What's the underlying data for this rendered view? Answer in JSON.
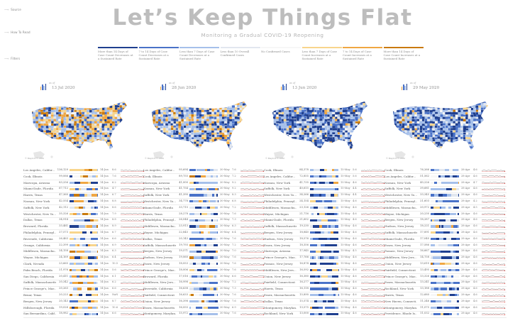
{
  "header": {
    "title": "Let’s Keep Things Flat",
    "subtitle": "Monitoring a Gradual COVID-19 Reopening"
  },
  "sidebar": [
    {
      "label": "Source",
      "icon": "arrow-icon"
    },
    {
      "label": "How To Read",
      "icon": "arrow-icon"
    },
    {
      "label": "Filters",
      "icon": "arrow-icon"
    }
  ],
  "legend": [
    {
      "label": "More than 14 Days of Case Count Decreases at a Sustained Rate",
      "color": "#1f3f8f"
    },
    {
      "label": "7 to 14 Days of Case Count Decreases at a Sustained Rate",
      "color": "#4a72c8"
    },
    {
      "label": "Less than 7 Days of Case Count Decreases at a Sustained Rate",
      "color": "#a6c0ea"
    },
    {
      "label": "Less than 10 Overall Confirmed Cases",
      "color": "#e2e7ef"
    },
    {
      "label": "No Confirmed Cases",
      "color": "#f7f7f7"
    },
    {
      "label": "Less than 7 Days of Case Count Increases at a Sustained Rate",
      "color": "#f8d58c"
    },
    {
      "label": "7 to 14 Days of Case Count Increases at a Sustained Rate",
      "color": "#f0a742"
    },
    {
      "label": "More than 14 Days of Case Count Increases at a Sustained Rate",
      "color": "#c97a0e"
    }
  ],
  "map_credit": "© Mapbox © OSM",
  "as_of_label": "as of",
  "chart_data": [
    {
      "type": "table",
      "title": "13 Jul 2020",
      "rows": [
        {
          "name": "Los Angeles, Califor...",
          "cases": "136,129",
          "date": "14-Jun",
          "rate": "8.6"
        },
        {
          "name": "Cook, Illinois",
          "cases": "99,066",
          "date": "14-Jun",
          "rate": "7.6"
        },
        {
          "name": "Maricopa, Arizona",
          "cases": "83,256",
          "date": "14-Jun",
          "rate": "6.2"
        },
        {
          "name": "Miami-Dade, Florida",
          "cases": "67,712",
          "date": "14-Jun",
          "rate": "4.7"
        },
        {
          "name": "Harris, Texas",
          "cases": "47,360",
          "date": "14-Jun",
          "rate": "6.7"
        },
        {
          "name": "Nassau, New York",
          "cases": "42,554",
          "date": "14-Jun",
          "rate": "8.8"
        },
        {
          "name": "Suffolk, New York",
          "cases": "42,112",
          "date": "14-Jun",
          "rate": "8.6"
        },
        {
          "name": "Westchester, New Yo...",
          "cases": "35,326",
          "date": "14-Jun",
          "rate": "7.9"
        },
        {
          "name": "Dallas, Texas",
          "cases": "34,914",
          "date": "14-Jun",
          "rate": "8.8"
        },
        {
          "name": "Broward, Florida",
          "cases": "33,461",
          "date": "14-Jun",
          "rate": "8.9"
        },
        {
          "name": "Philadelphia, Pennsyl...",
          "cases": "27,573",
          "date": "14-Jun",
          "rate": "6.7"
        },
        {
          "name": "Riverside, California",
          "cases": "26,463",
          "date": "14-Jun",
          "rate": "6.6"
        },
        {
          "name": "Orange, California",
          "cases": "22,399",
          "date": "14-Jun",
          "rate": "6.9"
        },
        {
          "name": "Middlesex, Massachu...",
          "cases": "24,158",
          "date": "14-Jun",
          "rate": "6.3"
        },
        {
          "name": "Wayne, Michigan",
          "cases": "24,169",
          "date": "14-Jun",
          "rate": "6.4"
        },
        {
          "name": "Clark, Nevada",
          "cases": "23,665",
          "date": "14-Jun",
          "rate": "10.5"
        },
        {
          "name": "Palm Beach, Florida",
          "cases": "21,976",
          "date": "14-Jun",
          "rate": "5.6"
        },
        {
          "name": "San Diego, California",
          "cases": "20,411",
          "date": "14-Jun",
          "rate": "6.1"
        },
        {
          "name": "Suffolk, Massachusetts",
          "cases": "20,342",
          "date": "14-Jun",
          "rate": "6.2"
        },
        {
          "name": "Prince George's, Mar...",
          "cases": "20,263",
          "date": "14-Jun",
          "rate": "6.6"
        },
        {
          "name": "Bexar, Texas",
          "cases": "20,223",
          "date": "14-Jun",
          "rate": "NaN"
        },
        {
          "name": "Bergen, New Jersey",
          "cases": "20,143",
          "date": "14-Jun",
          "rate": "8.7"
        },
        {
          "name": "Hillsborough, Florida",
          "cases": "19,028",
          "date": "14-Jun",
          "rate": "10.6"
        },
        {
          "name": "San Bernardino, Calif...",
          "cases": "18,982",
          "date": "14-Jun",
          "rate": "6.6"
        }
      ]
    },
    {
      "type": "table",
      "title": "28 Jun 2020",
      "rows": [
        {
          "name": "Los Angeles, Califor...",
          "cases": "95,694",
          "date": "30-May",
          "rate": "7.6"
        },
        {
          "name": "Cook, Illinois",
          "cases": "89,755",
          "date": "30-May",
          "rate": "7.2"
        },
        {
          "name": "Maricopa, Arizona",
          "cases": "41,000",
          "date": "30-May",
          "rate": "9.2"
        },
        {
          "name": "Nassau, New York",
          "cases": "41,754",
          "date": "30-May",
          "rate": "9.2"
        },
        {
          "name": "Suffolk, New York",
          "cases": "41,390",
          "date": "30-May",
          "rate": "8.3"
        },
        {
          "name": "Westchester, New Yo...",
          "cases": "34,778",
          "date": "30-May",
          "rate": "6.8"
        },
        {
          "name": "Miami-Dade, Florida",
          "cases": "33,715",
          "date": "30-May",
          "rate": "7.2"
        },
        {
          "name": "Harris, Texas",
          "cases": "28,278",
          "date": "30-May",
          "rate": "7.6"
        },
        {
          "name": "Philadelphia, Pennsyl...",
          "cases": "26,044",
          "date": "30-May",
          "rate": "7.3"
        },
        {
          "name": "Middlesex, Massachu...",
          "cases": "23,913",
          "date": "30-May",
          "rate": "6.3"
        },
        {
          "name": "Wayne, Michigan",
          "cases": "22,845",
          "date": "30-May",
          "rate": "6.4"
        },
        {
          "name": "Dallas, Texas",
          "cases": "20,143",
          "date": "30-May",
          "rate": "7.6"
        },
        {
          "name": "Suffolk, Massachusetts",
          "cases": "19,793",
          "date": "30-May",
          "rate": "7.2"
        },
        {
          "name": "Bergen, New Jersey",
          "cases": "19,571",
          "date": "30-May",
          "rate": "7.0"
        },
        {
          "name": "Hudson, New Jersey",
          "cases": "19,060",
          "date": "30-May",
          "rate": "7.6"
        },
        {
          "name": "Essex, New Jersey",
          "cases": "18,053",
          "date": "30-May",
          "rate": "7.6"
        },
        {
          "name": "Prince George's, Mar...",
          "cases": "18,006",
          "date": "30-May",
          "rate": "7.6"
        },
        {
          "name": "Broward, Florida",
          "cases": "17,016",
          "date": "30-May",
          "rate": "6.6"
        },
        {
          "name": "Middlesex, New Jers...",
          "cases": "16,998",
          "date": "30-May",
          "rate": "7.2"
        },
        {
          "name": "Riverside, California",
          "cases": "16,638",
          "date": "30-May",
          "rate": "7.3"
        },
        {
          "name": "Fairfield, Connecticut",
          "cases": "16,633",
          "date": "30-May",
          "rate": "7.6"
        },
        {
          "name": "Union, New Jersey",
          "cases": "16,398",
          "date": "30-May",
          "rate": "7.6"
        },
        {
          "name": "Essex, Massachusetts",
          "cases": "16,055",
          "date": "30-May",
          "rate": "6.9"
        },
        {
          "name": "Montgomery, Marylan...",
          "cases": "15,972",
          "date": "30-May",
          "rate": "7.6"
        }
      ]
    },
    {
      "type": "table",
      "title": "13 Jun 2020",
      "rows": [
        {
          "name": "Cook, Illinois",
          "cases": "84,378",
          "date": "15-May",
          "rate": "5.6"
        },
        {
          "name": "Los Angeles, Califor...",
          "cases": "72,855",
          "date": "15-May",
          "rate": "5.6"
        },
        {
          "name": "Nassau, New York",
          "cases": "41,735",
          "date": "15-May",
          "rate": "4.6"
        },
        {
          "name": "Suffolk, New York",
          "cases": "40,615",
          "date": "15-May",
          "rate": "4.4"
        },
        {
          "name": "Westchester, New Yo...",
          "cases": "34,266",
          "date": "15-May",
          "rate": "4.4"
        },
        {
          "name": "Philadelphia, Pennsyl...",
          "cases": "24,154",
          "date": "15-May",
          "rate": "4.6"
        },
        {
          "name": "Middlesex, Massachu...",
          "cases": "23,126",
          "date": "15-May",
          "rate": "4.6"
        },
        {
          "name": "Wayne, Michigan",
          "cases": "21,716",
          "date": "15-May",
          "rate": "4.6"
        },
        {
          "name": "Miami-Dade, Florida",
          "cases": "21,602",
          "date": "15-May",
          "rate": "4.6"
        },
        {
          "name": "Suffolk, Massachusetts",
          "cases": "19,230",
          "date": "15-May",
          "rate": "4.6"
        },
        {
          "name": "Bergen, New Jersey",
          "cases": "18,840",
          "date": "15-May",
          "rate": "4.6"
        },
        {
          "name": "Hudson, New Jersey",
          "cases": "18,576",
          "date": "15-May",
          "rate": "4.6"
        },
        {
          "name": "Essex, New Jersey",
          "cases": "18,356",
          "date": "15-May",
          "rate": "4.6"
        },
        {
          "name": "Maricopa, Arizona",
          "cases": "17,945",
          "date": "15-May",
          "rate": "4.5"
        },
        {
          "name": "Prince George's, Mar...",
          "cases": "17,766",
          "date": "15-May",
          "rate": "4.6"
        },
        {
          "name": "Passaic, New Jersey",
          "cases": "16,874",
          "date": "15-May",
          "rate": "4.6"
        },
        {
          "name": "Middlesex, New Jers...",
          "cases": "16,592",
          "date": "15-May",
          "rate": "4.6"
        },
        {
          "name": "Union, New Jersey",
          "cases": "16,380",
          "date": "15-May",
          "rate": "4.6"
        },
        {
          "name": "Fairfield, Connecticut",
          "cases": "16,277",
          "date": "15-May",
          "rate": "4.6"
        },
        {
          "name": "Harris, Texas",
          "cases": "16,118",
          "date": "15-May",
          "rate": "4.6"
        },
        {
          "name": "Essex, Massachusetts",
          "cases": "15,890",
          "date": "15-May",
          "rate": "4.6"
        },
        {
          "name": "Dallas, Texas",
          "cases": "15,574",
          "date": "15-May",
          "rate": "4.6"
        },
        {
          "name": "Montgomery, Marylan...",
          "cases": "13,575",
          "date": "15-May",
          "rate": "4.6"
        },
        {
          "name": "Rockland, New York",
          "cases": "13,000",
          "date": "15-May",
          "rate": "4.6"
        }
      ]
    },
    {
      "type": "table",
      "title": "29 May 2020",
      "rows": [
        {
          "name": "Cook, Illinois",
          "cases": "76,266",
          "date": "28-Apr",
          "rate": "4.6"
        },
        {
          "name": "Los Angeles, Califor...",
          "cases": "51,562",
          "date": "28-Apr",
          "rate": "4.6"
        },
        {
          "name": "Nassau, New York",
          "cases": "40,226",
          "date": "28-Apr",
          "rate": "4.7"
        },
        {
          "name": "Suffolk, New York",
          "cases": "39,681",
          "date": "28-Apr",
          "rate": "4.6"
        },
        {
          "name": "Westchester, New Yo...",
          "cases": "33,345",
          "date": "28-Apr",
          "rate": "4.6"
        },
        {
          "name": "Philadelphia, Pennsyl...",
          "cases": "21,603",
          "date": "28-Apr",
          "rate": "4.2"
        },
        {
          "name": "Middlesex, Massachu...",
          "cases": "20,972",
          "date": "28-Apr",
          "rate": "4.5"
        },
        {
          "name": "Wayne, Michigan",
          "cases": "20,230",
          "date": "28-Apr",
          "rate": "4.6"
        },
        {
          "name": "Bergen, New Jersey",
          "cases": "18,287",
          "date": "28-Apr",
          "rate": "4.6"
        },
        {
          "name": "Hudson, New Jersey",
          "cases": "18,221",
          "date": "28-Apr",
          "rate": "4.6"
        },
        {
          "name": "Suffolk, Massachusetts",
          "cases": "17,891",
          "date": "28-Apr",
          "rate": "4.6"
        },
        {
          "name": "Miami-Dade, Florida",
          "cases": "17,040",
          "date": "28-Apr",
          "rate": "4.6"
        },
        {
          "name": "Essex, New Jersey",
          "cases": "17,586",
          "date": "28-Apr",
          "rate": "4.6"
        },
        {
          "name": "Passaic, New Jersey",
          "cases": "16,667",
          "date": "28-Apr",
          "rate": "4.6"
        },
        {
          "name": "Middlesex, New Jers...",
          "cases": "14,758",
          "date": "28-Apr",
          "rate": "4.6"
        },
        {
          "name": "Union, New Jersey",
          "cases": "13,610",
          "date": "28-Apr",
          "rate": "4.6"
        },
        {
          "name": "Fairfield, Connecticut",
          "cases": "13,495",
          "date": "28-Apr",
          "rate": "4.6"
        },
        {
          "name": "Prince George's, Mar...",
          "cases": "13,326",
          "date": "28-Apr",
          "rate": "4.6"
        },
        {
          "name": "Essex, Massachusetts",
          "cases": "13,241",
          "date": "28-Apr",
          "rate": "4.6"
        },
        {
          "name": "Rockland, New York",
          "cases": "13,188",
          "date": "28-Apr",
          "rate": "4.6"
        },
        {
          "name": "Harris, Texas",
          "cases": "12,680",
          "date": "28-Apr",
          "rate": "4.6"
        },
        {
          "name": "New Haven, Connecti...",
          "cases": "11,246",
          "date": "28-Apr",
          "rate": "4.6"
        },
        {
          "name": "Montgomery, Marylan...",
          "cases": "11,075",
          "date": "28-Apr",
          "rate": "4.6"
        },
        {
          "name": "Providence, Rhode Is...",
          "cases": "11,032",
          "date": "28-Apr",
          "rate": "4.6"
        }
      ]
    }
  ]
}
